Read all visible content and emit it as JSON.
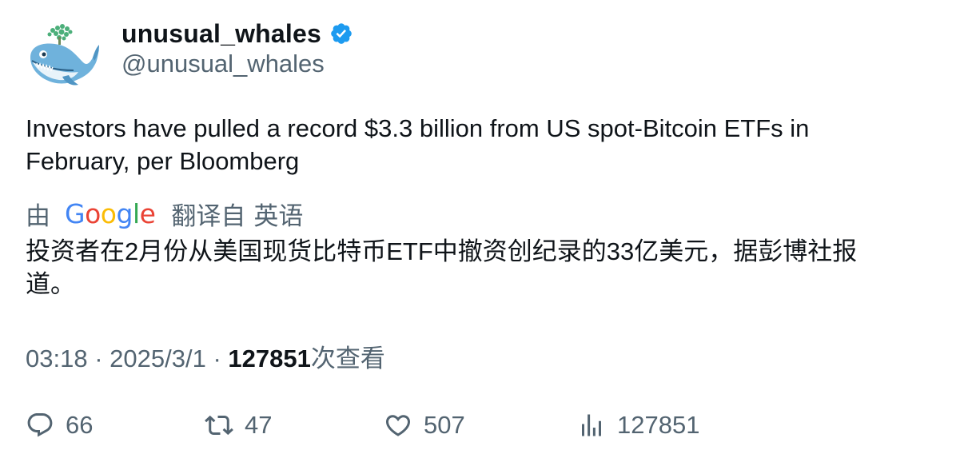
{
  "author": {
    "display_name": "unusual_whales",
    "handle": "@unusual_whales",
    "verified": true,
    "avatar_icon": "whale-avatar-icon",
    "verified_color": "#1d9bf0"
  },
  "tweet": {
    "text": "Investors have pulled a record $3.3 billion from US spot-Bitcoin ETFs in February, per Bloomberg"
  },
  "translation": {
    "by_label": "由",
    "provider": "Google",
    "translated_from": "翻译自",
    "language": "英语",
    "text": "投资者在2月份从美国现货比特币ETF中撤资创纪录的33亿美元，据彭博社报道。"
  },
  "meta": {
    "time": "03:18",
    "separator": "·",
    "date": "2025/3/1",
    "views_count": "127851",
    "views_label": "次查看"
  },
  "actions": {
    "replies": "66",
    "retweets": "47",
    "likes": "507",
    "views": "127851"
  },
  "colors": {
    "text": "#0f1419",
    "secondary": "#536471",
    "google_blue": "#4285f4",
    "google_red": "#ea4335",
    "google_yellow": "#fbbc05",
    "google_green": "#34a853"
  }
}
